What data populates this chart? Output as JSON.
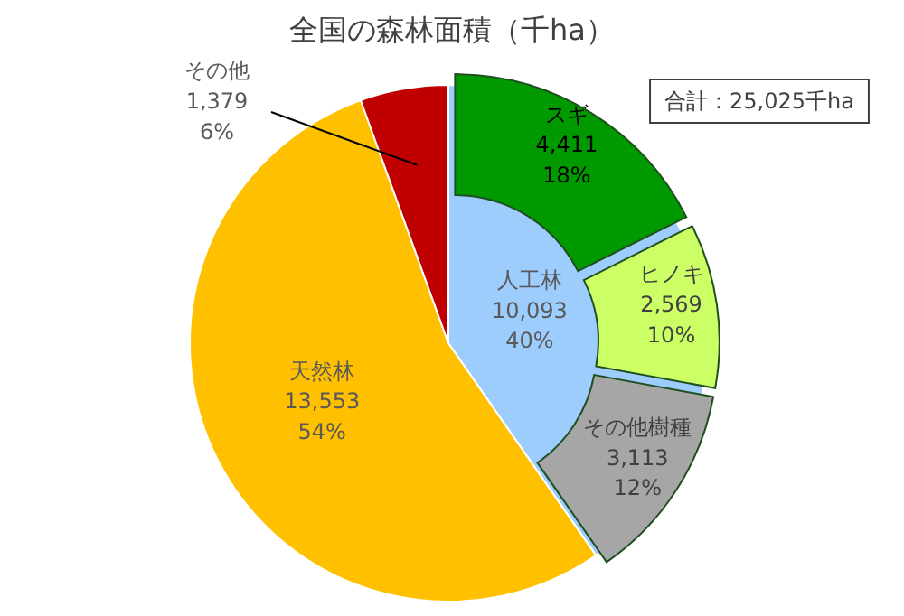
{
  "chart_data": [
    {
      "type": "pie",
      "title": "全国の森林面積（千ha）",
      "annotations": [
        "合計：25,025千ha"
      ],
      "categories": [
        "人工林",
        "天然林",
        "その他"
      ],
      "values": [
        10093,
        13553,
        1379
      ],
      "colors": [
        "#9dcdfd",
        "#ffc000",
        "#c00000"
      ],
      "value_labels": [
        "10,093\n40%",
        "13,553\n54%",
        "1,379\n6%"
      ]
    },
    {
      "type": "donut",
      "categories": [
        "スギ",
        "ヒノキ",
        "その他樹種"
      ],
      "values": [
        4411,
        2569,
        3113
      ],
      "colors": [
        "#009900",
        "#ccff66",
        "#a6a6a6"
      ],
      "value_labels": [
        "4,411\n18%",
        "2,569\n10%",
        "3,113\n12%"
      ]
    }
  ]
}
